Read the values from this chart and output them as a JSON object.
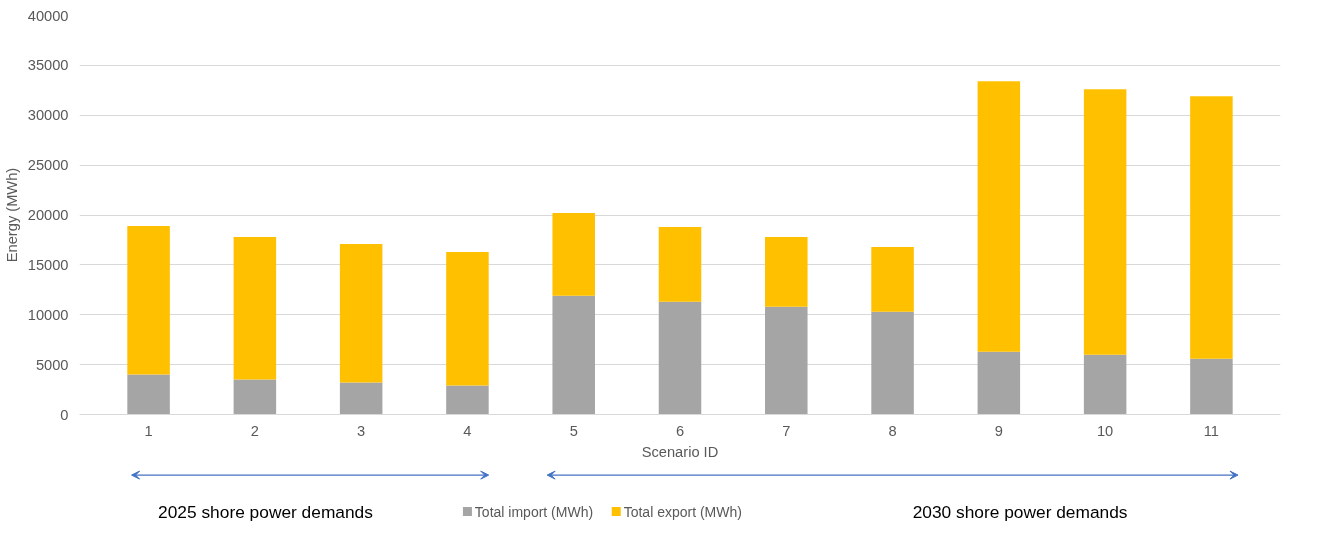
{
  "chart_data": {
    "type": "bar",
    "stacked": true,
    "xlabel": "Scenario ID",
    "ylabel": "Energy (MWh)",
    "categories": [
      "1",
      "2",
      "3",
      "4",
      "5",
      "6",
      "7",
      "8",
      "9",
      "10",
      "11"
    ],
    "series": [
      {
        "name": "Total import (MWh)",
        "color": "#a5a5a5",
        "values": [
          4000,
          3500,
          3200,
          2900,
          11900,
          11300,
          10800,
          10300,
          6300,
          6000,
          5600
        ]
      },
      {
        "name": "Total export (MWh)",
        "color": "#ffc000",
        "values": [
          14900,
          14300,
          13900,
          13400,
          8300,
          7500,
          7000,
          6500,
          27100,
          26600,
          26300
        ]
      }
    ],
    "ylim": [
      0,
      40000
    ],
    "yticks": [
      0,
      5000,
      10000,
      15000,
      20000,
      25000,
      30000,
      35000,
      40000
    ],
    "grid": "y",
    "legend": "bottom",
    "annotations": [
      "2025 shore power demands",
      "2030 shore power demands"
    ]
  }
}
